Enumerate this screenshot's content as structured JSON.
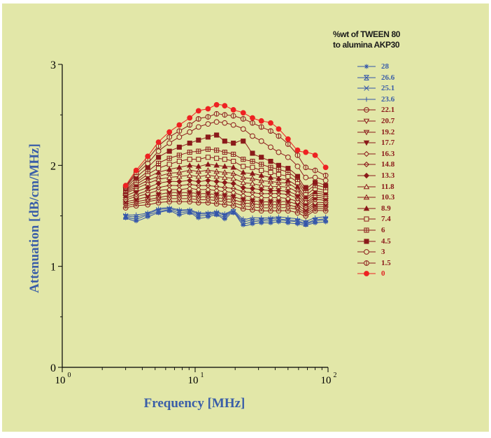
{
  "chart_data": {
    "type": "line",
    "xlabel": "Frequency [MHz]",
    "ylabel": "Attenuation [dB/cm/MHz]",
    "xscale": "log",
    "xlim": [
      1,
      100
    ],
    "ylim": [
      0,
      3
    ],
    "xticks": [
      {
        "value": 1,
        "base": "10",
        "exp": "0"
      },
      {
        "value": 10,
        "base": "10",
        "exp": "1"
      },
      {
        "value": 100,
        "base": "10",
        "exp": "2"
      }
    ],
    "yticks": [
      {
        "value": 0,
        "label": "0"
      },
      {
        "value": 1,
        "label": "1"
      },
      {
        "value": 2,
        "label": "2"
      },
      {
        "value": 3,
        "label": "3"
      }
    ],
    "grid": false,
    "legend": {
      "title_lines": [
        "%wt of TWEEN 80",
        "to alumina AKP30"
      ],
      "position": "right"
    },
    "x": [
      3,
      3.6,
      4.4,
      5.3,
      6.4,
      7.6,
      9.1,
      10.6,
      12.5,
      14.5,
      16.7,
      19.4,
      23,
      27,
      31.5,
      37,
      42.5,
      50,
      59,
      68,
      80,
      96
    ],
    "series": [
      {
        "name": "28",
        "marker": "asterisk",
        "color": "#3355aa",
        "values": [
          1.48,
          1.45,
          1.49,
          1.53,
          1.55,
          1.51,
          1.53,
          1.48,
          1.49,
          1.51,
          1.47,
          1.53,
          1.41,
          1.42,
          1.43,
          1.43,
          1.44,
          1.43,
          1.42,
          1.41,
          1.43,
          1.44
        ]
      },
      {
        "name": "26.6",
        "marker": "x-bar",
        "color": "#3355aa",
        "values": [
          1.49,
          1.47,
          1.51,
          1.54,
          1.56,
          1.53,
          1.54,
          1.5,
          1.51,
          1.52,
          1.49,
          1.54,
          1.43,
          1.44,
          1.45,
          1.45,
          1.46,
          1.45,
          1.44,
          1.42,
          1.45,
          1.46
        ]
      },
      {
        "name": "25.1",
        "marker": "x",
        "color": "#3355aa",
        "values": [
          1.5,
          1.49,
          1.52,
          1.56,
          1.57,
          1.55,
          1.55,
          1.52,
          1.52,
          1.53,
          1.51,
          1.54,
          1.45,
          1.46,
          1.46,
          1.47,
          1.47,
          1.46,
          1.45,
          1.43,
          1.46,
          1.47
        ]
      },
      {
        "name": "23.6",
        "marker": "plus",
        "color": "#3355aa",
        "values": [
          1.51,
          1.51,
          1.53,
          1.57,
          1.58,
          1.56,
          1.56,
          1.53,
          1.53,
          1.54,
          1.52,
          1.55,
          1.47,
          1.48,
          1.48,
          1.48,
          1.49,
          1.48,
          1.47,
          1.45,
          1.48,
          1.49
        ]
      },
      {
        "name": "22.1",
        "marker": "circle-dash",
        "color": "#8b1a1a",
        "values": [
          1.58,
          1.6,
          1.61,
          1.63,
          1.64,
          1.64,
          1.64,
          1.63,
          1.63,
          1.62,
          1.61,
          1.6,
          1.57,
          1.56,
          1.55,
          1.55,
          1.55,
          1.55,
          1.53,
          1.5,
          1.55,
          1.55
        ]
      },
      {
        "name": "20.7",
        "marker": "tri-down-open",
        "color": "#8b1a1a",
        "values": [
          1.6,
          1.62,
          1.64,
          1.66,
          1.67,
          1.67,
          1.67,
          1.66,
          1.66,
          1.65,
          1.64,
          1.63,
          1.6,
          1.59,
          1.58,
          1.58,
          1.58,
          1.58,
          1.56,
          1.52,
          1.57,
          1.57
        ]
      },
      {
        "name": "19.2",
        "marker": "tri-down-bar",
        "color": "#8b1a1a",
        "values": [
          1.62,
          1.64,
          1.66,
          1.68,
          1.7,
          1.7,
          1.7,
          1.69,
          1.69,
          1.68,
          1.67,
          1.66,
          1.63,
          1.62,
          1.61,
          1.61,
          1.61,
          1.61,
          1.58,
          1.54,
          1.59,
          1.59
        ]
      },
      {
        "name": "17.7",
        "marker": "tri-down-filled",
        "color": "#8b1a1a",
        "values": [
          1.64,
          1.66,
          1.69,
          1.71,
          1.73,
          1.73,
          1.73,
          1.72,
          1.72,
          1.71,
          1.7,
          1.69,
          1.66,
          1.65,
          1.64,
          1.64,
          1.64,
          1.64,
          1.61,
          1.56,
          1.61,
          1.61
        ]
      },
      {
        "name": "16.3",
        "marker": "diamond-open",
        "color": "#8b1a1a",
        "values": [
          1.66,
          1.69,
          1.72,
          1.75,
          1.76,
          1.76,
          1.77,
          1.76,
          1.76,
          1.75,
          1.74,
          1.73,
          1.7,
          1.69,
          1.68,
          1.68,
          1.68,
          1.67,
          1.64,
          1.58,
          1.63,
          1.63
        ]
      },
      {
        "name": "14.8",
        "marker": "diamond-bar",
        "color": "#8b1a1a",
        "values": [
          1.68,
          1.71,
          1.75,
          1.78,
          1.8,
          1.8,
          1.81,
          1.8,
          1.8,
          1.79,
          1.78,
          1.77,
          1.74,
          1.73,
          1.72,
          1.72,
          1.72,
          1.71,
          1.67,
          1.6,
          1.66,
          1.65
        ]
      },
      {
        "name": "13.3",
        "marker": "diamond-filled",
        "color": "#8b1a1a",
        "values": [
          1.7,
          1.74,
          1.78,
          1.82,
          1.84,
          1.84,
          1.85,
          1.84,
          1.85,
          1.84,
          1.83,
          1.82,
          1.78,
          1.77,
          1.76,
          1.75,
          1.75,
          1.74,
          1.7,
          1.62,
          1.68,
          1.67
        ]
      },
      {
        "name": "11.8",
        "marker": "tri-up-open",
        "color": "#8b1a1a",
        "values": [
          1.72,
          1.77,
          1.82,
          1.86,
          1.88,
          1.89,
          1.9,
          1.89,
          1.9,
          1.89,
          1.88,
          1.87,
          1.83,
          1.82,
          1.8,
          1.79,
          1.79,
          1.78,
          1.73,
          1.64,
          1.7,
          1.69
        ]
      },
      {
        "name": "10.3",
        "marker": "tri-up-bar",
        "color": "#8b1a1a",
        "values": [
          1.73,
          1.79,
          1.85,
          1.89,
          1.92,
          1.93,
          1.95,
          1.94,
          1.95,
          1.94,
          1.93,
          1.92,
          1.88,
          1.87,
          1.85,
          1.84,
          1.83,
          1.82,
          1.76,
          1.67,
          1.72,
          1.71
        ]
      },
      {
        "name": "8.9",
        "marker": "tri-up-filled",
        "color": "#8b1a1a",
        "values": [
          1.74,
          1.81,
          1.88,
          1.93,
          1.96,
          1.98,
          2.0,
          1.99,
          2.01,
          2.0,
          1.99,
          1.98,
          1.93,
          1.92,
          1.9,
          1.88,
          1.87,
          1.85,
          1.79,
          1.69,
          1.74,
          1.73
        ]
      },
      {
        "name": "7.4",
        "marker": "square-open",
        "color": "#8b1a1a",
        "values": [
          1.75,
          1.83,
          1.91,
          1.97,
          2.01,
          2.04,
          2.06,
          2.06,
          2.08,
          2.07,
          2.06,
          2.04,
          1.99,
          1.98,
          1.95,
          1.93,
          1.91,
          1.89,
          1.83,
          1.72,
          1.77,
          1.75
        ]
      },
      {
        "name": "6",
        "marker": "square-cross",
        "color": "#8b1a1a",
        "values": [
          1.76,
          1.85,
          1.94,
          2.02,
          2.07,
          2.1,
          2.13,
          2.14,
          2.16,
          2.15,
          2.13,
          2.11,
          2.06,
          2.04,
          2.01,
          1.98,
          1.96,
          1.93,
          1.86,
          1.75,
          1.8,
          1.78
        ]
      },
      {
        "name": "4.5",
        "marker": "square-filled",
        "color": "#8b1a1a",
        "values": [
          1.77,
          1.88,
          1.98,
          2.08,
          2.14,
          2.18,
          2.22,
          2.25,
          2.28,
          2.3,
          2.24,
          2.22,
          2.24,
          2.12,
          2.08,
          2.04,
          2.0,
          1.97,
          1.89,
          1.78,
          1.83,
          1.8
        ]
      },
      {
        "name": "3",
        "marker": "circle-open",
        "color": "#8b1a1a",
        "values": [
          1.78,
          1.91,
          2.02,
          2.14,
          2.22,
          2.28,
          2.33,
          2.38,
          2.41,
          2.43,
          2.42,
          2.4,
          2.36,
          2.29,
          2.24,
          2.18,
          2.13,
          2.08,
          1.99,
          1.88,
          1.88,
          1.85
        ]
      },
      {
        "name": "1.5",
        "marker": "circle-bar",
        "color": "#8b1a1a",
        "values": [
          1.79,
          1.93,
          2.06,
          2.19,
          2.28,
          2.34,
          2.4,
          2.46,
          2.48,
          2.51,
          2.5,
          2.49,
          2.46,
          2.42,
          2.38,
          2.34,
          2.29,
          2.21,
          2.1,
          1.98,
          1.95,
          1.9
        ]
      },
      {
        "name": "0",
        "marker": "circle-filled",
        "color": "#ee2222",
        "values": [
          1.8,
          1.95,
          2.09,
          2.23,
          2.33,
          2.4,
          2.47,
          2.54,
          2.56,
          2.6,
          2.59,
          2.55,
          2.52,
          2.47,
          2.44,
          2.42,
          2.36,
          2.26,
          2.15,
          2.13,
          2.1,
          1.98
        ]
      }
    ]
  }
}
